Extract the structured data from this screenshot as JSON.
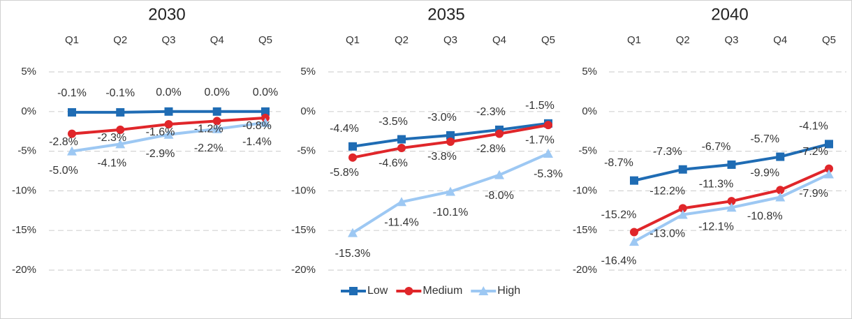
{
  "chart_data": [
    {
      "type": "line",
      "title": "2030",
      "categories": [
        "Q1",
        "Q2",
        "Q3",
        "Q4",
        "Q5"
      ],
      "ylim": [
        -20,
        5
      ],
      "yticks": [
        {
          "value": 5,
          "label": "5%"
        },
        {
          "value": 0,
          "label": "0%"
        },
        {
          "value": -5,
          "label": "-5%"
        },
        {
          "value": -10,
          "label": "-10%"
        },
        {
          "value": -15,
          "label": "-15%"
        },
        {
          "value": -20,
          "label": "-20%"
        }
      ],
      "grid": true,
      "series": [
        {
          "color": "#1f6cb4",
          "marker": "square",
          "values": [
            -0.1,
            -0.1,
            0.0,
            0.0,
            0.0
          ],
          "value_labels": [
            "-0.1%",
            "-0.1%",
            "0.0%",
            "0.0%",
            "0.0%"
          ]
        },
        {
          "color": "#e0262a",
          "marker": "circle",
          "values": [
            -2.8,
            -2.3,
            -1.6,
            -1.2,
            -0.8
          ],
          "value_labels": [
            "-2.8%",
            "-2.3%",
            "-1.6%",
            "-1.2%",
            "-0.8%"
          ]
        },
        {
          "color": "#9dc8f3",
          "marker": "triangle",
          "values": [
            -5.0,
            -4.1,
            -2.9,
            -2.2,
            -1.4
          ],
          "value_labels": [
            "-5.0%",
            "-4.1%",
            "-2.9%",
            "-2.2%",
            "-1.4%"
          ]
        }
      ]
    },
    {
      "type": "line",
      "title": "2035",
      "categories": [
        "Q1",
        "Q2",
        "Q3",
        "Q4",
        "Q5"
      ],
      "ylim": [
        -20,
        5
      ],
      "yticks": [
        {
          "value": 5,
          "label": "5%"
        },
        {
          "value": 0,
          "label": "0%"
        },
        {
          "value": -5,
          "label": "-5%"
        },
        {
          "value": -10,
          "label": "-10%"
        },
        {
          "value": -15,
          "label": "-15%"
        },
        {
          "value": -20,
          "label": "-20%"
        }
      ],
      "grid": true,
      "legend": "bottom",
      "series": [
        {
          "name": "Low",
          "color": "#1f6cb4",
          "marker": "square",
          "values": [
            -4.4,
            -3.5,
            -3.0,
            -2.3,
            -1.5
          ],
          "value_labels": [
            "-4.4%",
            "-3.5%",
            "-3.0%",
            "-2.3%",
            "-1.5%"
          ]
        },
        {
          "name": "Medium",
          "color": "#e0262a",
          "marker": "circle",
          "values": [
            -5.8,
            -4.6,
            -3.8,
            -2.8,
            -1.7
          ],
          "value_labels": [
            "-5.8%",
            "-4.6%",
            "-3.8%",
            "-2.8%",
            "-1.7%"
          ]
        },
        {
          "name": "High",
          "color": "#9dc8f3",
          "marker": "triangle",
          "values": [
            -15.3,
            -11.4,
            -10.1,
            -8.0,
            -5.3
          ],
          "value_labels": [
            "-15.3%",
            "-11.4%",
            "-10.1%",
            "-8.0%",
            "-5.3%"
          ]
        }
      ]
    },
    {
      "type": "line",
      "title": "2040",
      "categories": [
        "Q1",
        "Q2",
        "Q3",
        "Q4",
        "Q5"
      ],
      "ylim": [
        -20,
        5
      ],
      "yticks": [
        {
          "value": 5,
          "label": "5%"
        },
        {
          "value": 0,
          "label": "0%"
        },
        {
          "value": -5,
          "label": "-5%"
        },
        {
          "value": -10,
          "label": "-10%"
        },
        {
          "value": -15,
          "label": "-15%"
        },
        {
          "value": -20,
          "label": "-20%"
        }
      ],
      "grid": true,
      "series": [
        {
          "color": "#1f6cb4",
          "marker": "square",
          "values": [
            -8.7,
            -7.3,
            -6.7,
            -5.7,
            -4.1
          ],
          "value_labels": [
            "-8.7%",
            "-7.3%",
            "-6.7%",
            "-5.7%",
            "-4.1%"
          ]
        },
        {
          "color": "#e0262a",
          "marker": "circle",
          "values": [
            -15.2,
            -12.2,
            -11.3,
            -9.9,
            -7.2
          ],
          "value_labels": [
            "-15.2%",
            "-12.2%",
            "-11.3%",
            "-9.9%",
            "-7.2%"
          ]
        },
        {
          "color": "#9dc8f3",
          "marker": "triangle",
          "values": [
            -16.4,
            -13.0,
            -12.1,
            -10.8,
            -7.9
          ],
          "value_labels": [
            "-16.4%",
            "-13.0%",
            "-12.1%",
            "-10.8%",
            "-7.9%"
          ]
        }
      ]
    }
  ]
}
